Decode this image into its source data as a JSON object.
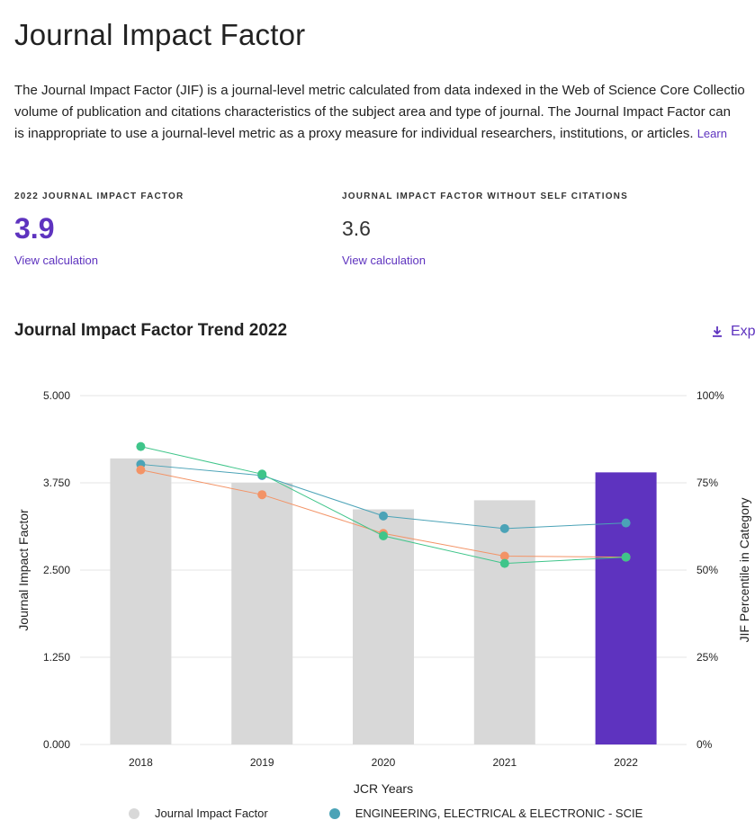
{
  "page": {
    "title": "Journal Impact Factor",
    "description_lines": [
      "The Journal Impact Factor (JIF) is a journal-level metric calculated from data indexed in the Web of Science Core Collectio",
      "volume of publication and citations characteristics of the subject area and type of journal. The Journal Impact Factor can",
      "is inappropriate to use a journal-level metric as a proxy measure for individual researchers, institutions, or articles."
    ],
    "learn_link": "Learn"
  },
  "metrics": {
    "jif": {
      "label": "2022 JOURNAL IMPACT FACTOR",
      "value": "3.9",
      "link": "View calculation"
    },
    "jif_no_self": {
      "label": "JOURNAL IMPACT FACTOR WITHOUT SELF CITATIONS",
      "value": "3.6",
      "link": "View calculation"
    }
  },
  "trend": {
    "title": "Journal Impact Factor Trend 2022",
    "export_label": "Exp",
    "export_icon": "download-icon"
  },
  "chart_data": {
    "type": "bar",
    "categories": [
      "2018",
      "2019",
      "2020",
      "2021",
      "2022"
    ],
    "xlabel": "JCR Years",
    "ylabel": "Journal Impact Factor",
    "y2label": "JIF Percentile in Category",
    "ylim": [
      0,
      5
    ],
    "y2lim": [
      0,
      100
    ],
    "yticks": [
      "0.000",
      "1.250",
      "2.500",
      "3.750",
      "5.000"
    ],
    "y2ticks": [
      "0%",
      "25%",
      "50%",
      "75%",
      "100%"
    ],
    "grid": true,
    "legend_position": "bottom",
    "bars": {
      "name": "Journal Impact Factor",
      "values": [
        4.1,
        3.75,
        3.37,
        3.5,
        3.9
      ],
      "color": "#d8d8d8",
      "highlight_color": "#5e33bf",
      "highlight_index": 4
    },
    "series": [
      {
        "name": "ENGINEERING, ELECTRICAL & ELECTRONIC - SCIE",
        "axis": "percentile",
        "values": [
          80.3,
          77.1,
          65.5,
          61.9,
          63.5
        ],
        "color": "#4ba3b7"
      },
      {
        "name": "",
        "axis": "percentile",
        "values": [
          78.7,
          71.6,
          60.5,
          54.0,
          53.7
        ],
        "color": "#f39366"
      },
      {
        "name": "",
        "axis": "percentile",
        "values": [
          85.4,
          77.5,
          59.8,
          51.9,
          53.7
        ],
        "color": "#3fc58a"
      }
    ]
  }
}
